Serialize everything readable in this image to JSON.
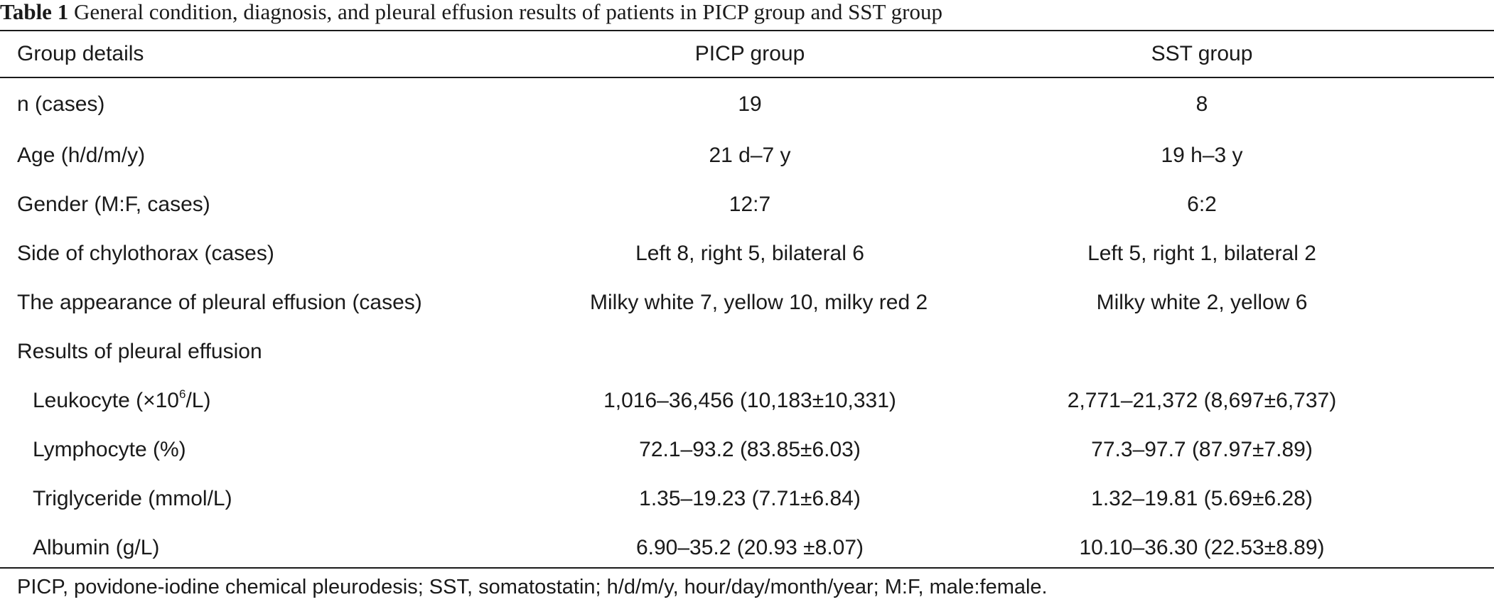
{
  "caption": {
    "label": "Table 1",
    "text": "General condition, diagnosis, and pleural effusion results of patients in PICP group and SST group"
  },
  "table": {
    "headers": [
      "Group details",
      "PICP group",
      "SST group"
    ],
    "rows": [
      {
        "label": "n (cases)",
        "picp": "19",
        "sst": "8"
      },
      {
        "label": "Age (h/d/m/y)",
        "picp": "21 d–7 y",
        "sst": "19 h–3 y"
      },
      {
        "label": "Gender (M:F, cases)",
        "picp": "12:7",
        "sst": "6:2"
      },
      {
        "label": "Side of chylothorax (cases)",
        "picp": "Left 8, right 5, bilateral 6",
        "sst": "Left 5, right 1, bilateral 2"
      },
      {
        "label": "The appearance of pleural effusion (cases)",
        "picp": "Milky white 7, yellow 10, milky red 2",
        "sst": "Milky white 2, yellow 6"
      },
      {
        "label": "Results of pleural effusion",
        "picp": "",
        "sst": ""
      },
      {
        "label_pre": "Leukocyte (×10",
        "label_sup": "6",
        "label_post": "/L)",
        "picp": "1,016–36,456 (10,183±10,331)",
        "sst": "2,771–21,372 (8,697±6,737)"
      },
      {
        "label": "Lymphocyte (%)",
        "picp": "72.1–93.2 (83.85±6.03)",
        "sst": "77.3–97.7 (87.97±7.89)"
      },
      {
        "label": "Triglyceride (mmol/L)",
        "picp": "1.35–19.23 (7.71±6.84)",
        "sst": "1.32–19.81 (5.69±6.28)"
      },
      {
        "label": "Albumin (g/L)",
        "picp": "6.90–35.2 (20.93 ±8.07)",
        "sst": "10.10–36.30 (22.53±8.89)"
      }
    ]
  },
  "footnote": "PICP, povidone-iodine chemical pleurodesis; SST, somatostatin; h/d/m/y, hour/day/month/year; M:F, male:female."
}
